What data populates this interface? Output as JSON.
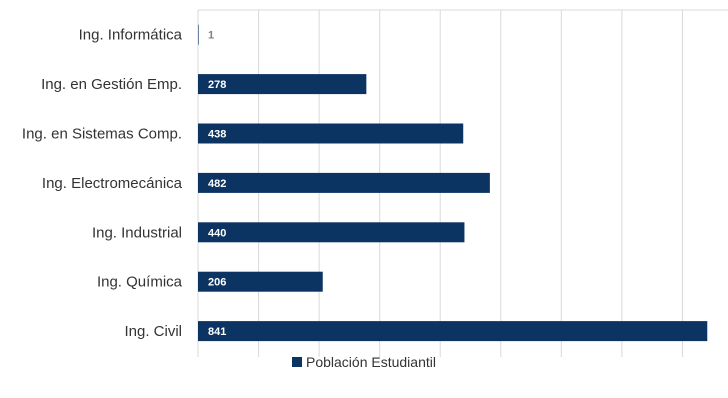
{
  "chart_data": {
    "type": "bar",
    "orientation": "horizontal",
    "categories": [
      "Ing. Informática",
      "Ing. en Gestión Emp.",
      "Ing. en Sistemas Comp.",
      "Ing. Electromecánica",
      "Ing. Industrial",
      "Ing. Química",
      "Ing. Civil"
    ],
    "series": [
      {
        "name": "Población Estudiantil",
        "values": [
          1,
          278,
          438,
          482,
          440,
          206,
          841
        ],
        "color": "#0c3462"
      }
    ],
    "xlim": [
      0,
      900
    ],
    "grid": true,
    "legend": "bottom-center",
    "data_labels": true
  },
  "colors": {
    "bar": "#0c3462",
    "grid": "#d9d9d9",
    "label_text": "#333333",
    "data_label_on_bar": "#ffffff",
    "data_label_off_bar": "#7f7f7f"
  }
}
